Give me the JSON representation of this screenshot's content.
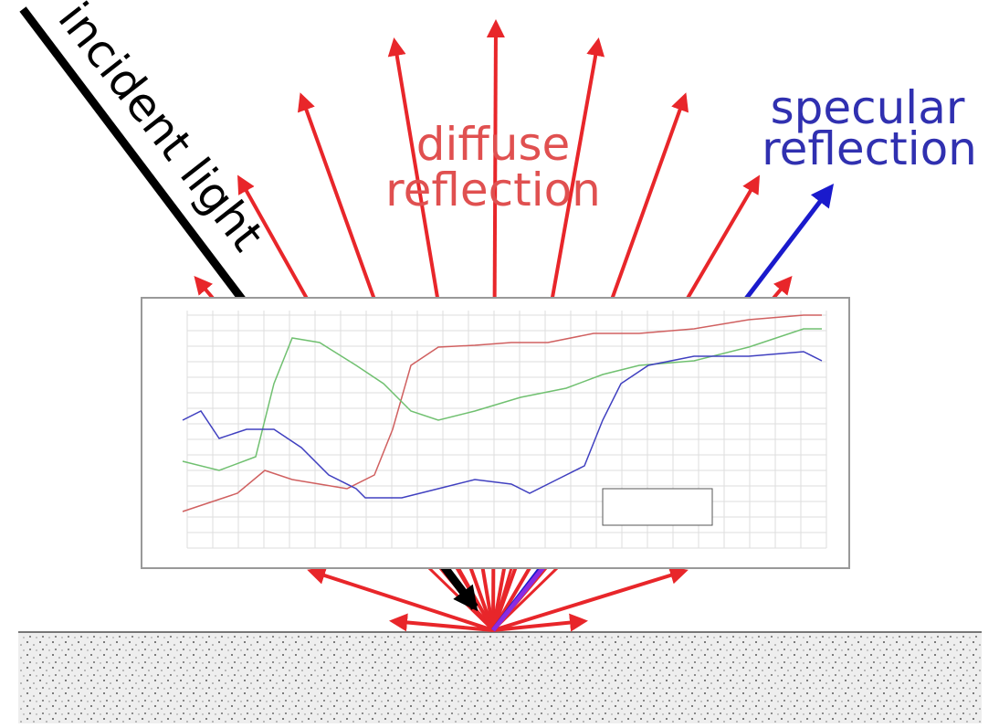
{
  "labels": {
    "incident": "incident light",
    "diffuse": [
      "diffuse",
      "reflection"
    ],
    "specular": [
      "specular",
      "reflection"
    ]
  }
}
